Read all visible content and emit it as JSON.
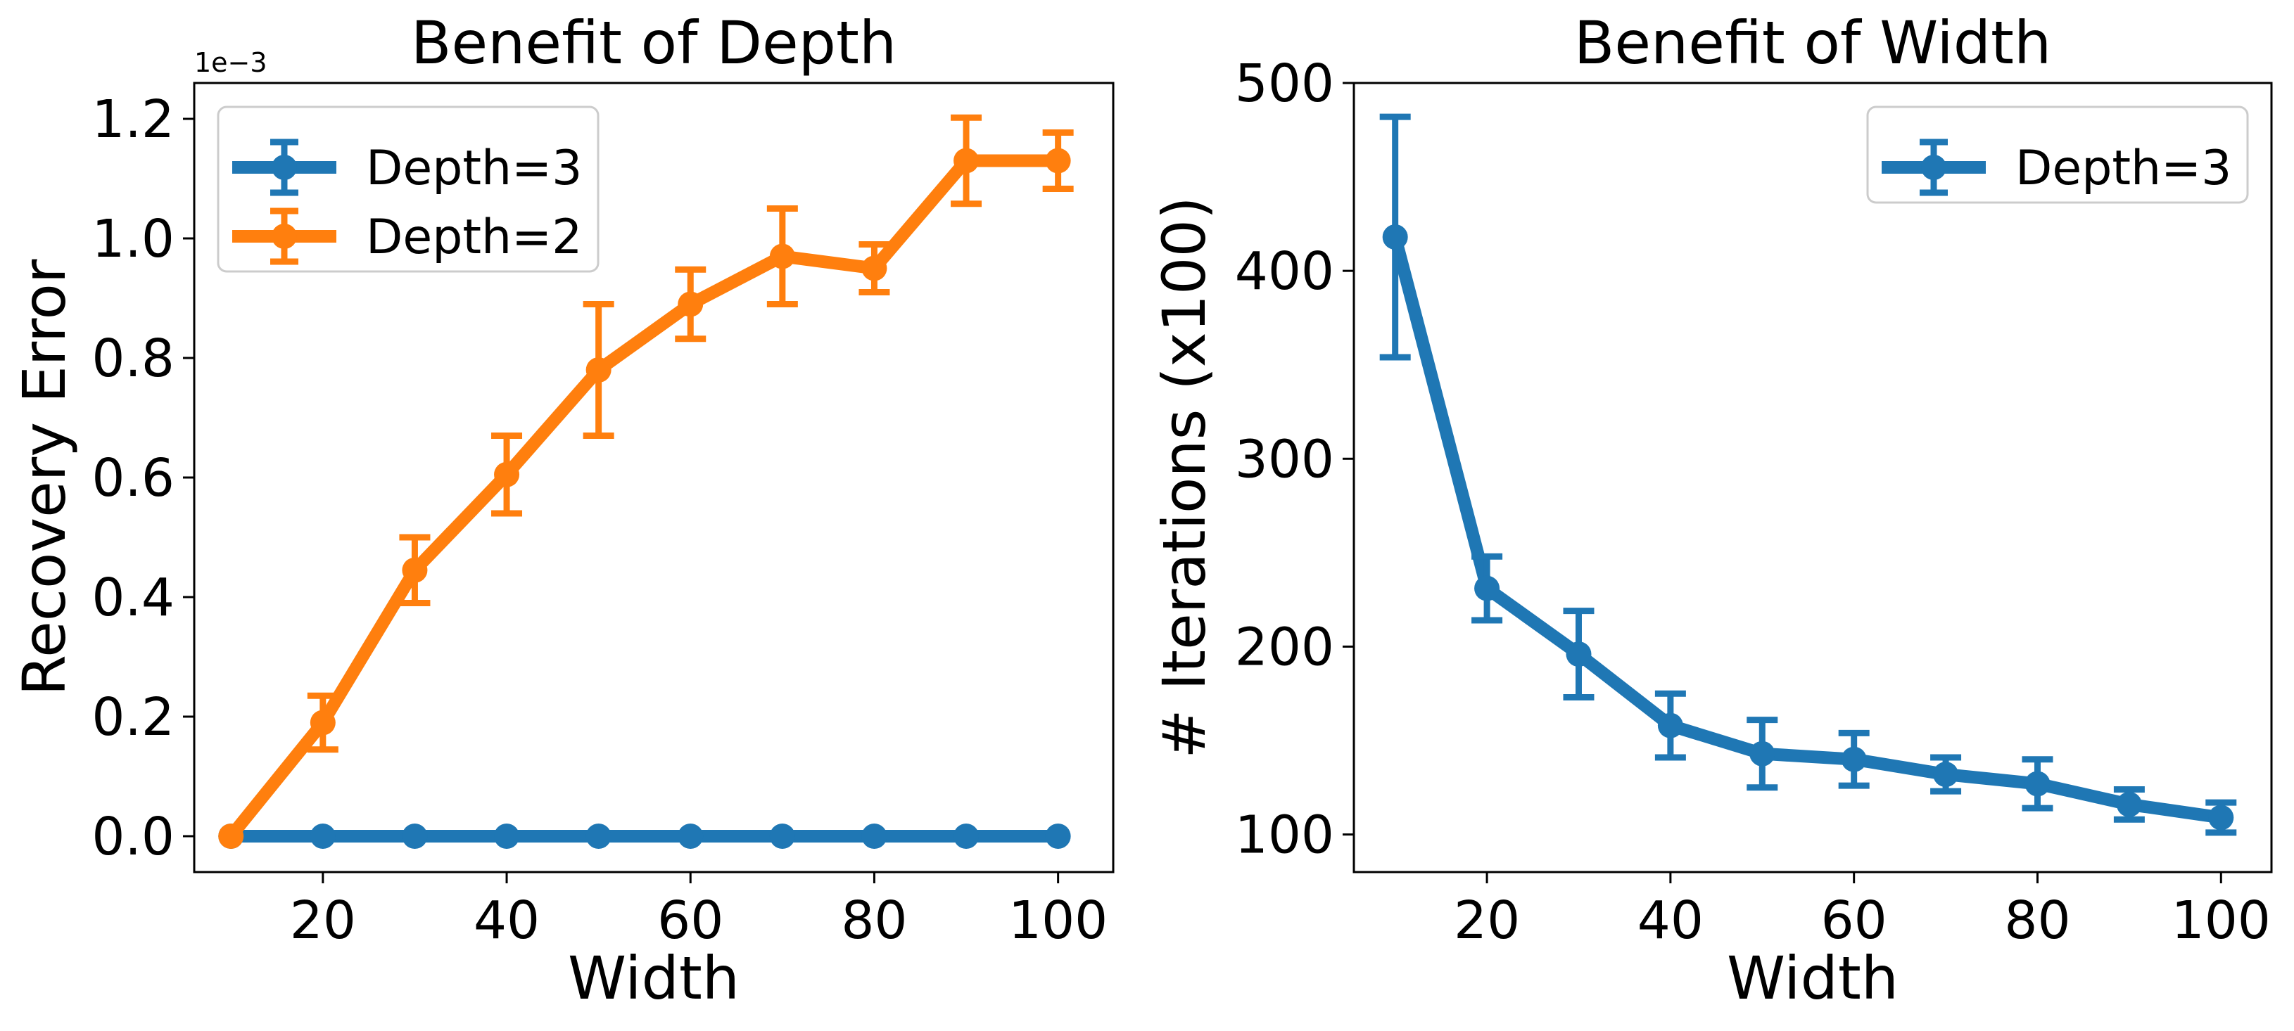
{
  "chart_data": [
    {
      "type": "line",
      "title": "Benefit of Depth",
      "xlabel": "Width",
      "ylabel": "Recovery Error",
      "y_scale_label": "1e−3",
      "xlim": [
        6,
        106
      ],
      "ylim": [
        -0.06,
        1.26
      ],
      "xticks": [
        20,
        40,
        60,
        80,
        100
      ],
      "xtick_labels": [
        "20",
        "40",
        "60",
        "80",
        "100"
      ],
      "yticks": [
        0.0,
        0.2,
        0.4,
        0.6,
        0.8,
        1.0,
        1.2
      ],
      "ytick_labels": [
        "0.0",
        "0.2",
        "0.4",
        "0.6",
        "0.8",
        "1.0",
        "1.2"
      ],
      "grid": false,
      "legend_position": "upper-left",
      "x": [
        10,
        20,
        30,
        40,
        50,
        60,
        70,
        80,
        90,
        100
      ],
      "series": [
        {
          "name": "Depth=3",
          "color": "#1f77b4",
          "values": [
            0,
            0,
            0,
            0,
            0,
            0,
            0,
            0,
            0,
            0
          ],
          "errors": [
            0,
            0,
            0,
            0,
            0,
            0,
            0,
            0,
            0,
            0
          ]
        },
        {
          "name": "Depth=2",
          "color": "#ff7f0e",
          "values": [
            0.0,
            0.19,
            0.445,
            0.605,
            0.78,
            0.89,
            0.97,
            0.95,
            1.13,
            1.13
          ],
          "errors": [
            0.0,
            0.045,
            0.055,
            0.065,
            0.11,
            0.058,
            0.08,
            0.04,
            0.072,
            0.047
          ]
        }
      ]
    },
    {
      "type": "line",
      "title": "Benefit of Width",
      "xlabel": "Width",
      "ylabel": "# Iterations (x100)",
      "xlim": [
        5.5,
        105.5
      ],
      "ylim": [
        80,
        500
      ],
      "xticks": [
        20,
        40,
        60,
        80,
        100
      ],
      "xtick_labels": [
        "20",
        "40",
        "60",
        "80",
        "100"
      ],
      "yticks": [
        100,
        200,
        300,
        400,
        500
      ],
      "ytick_labels": [
        "100",
        "200",
        "300",
        "400",
        "500"
      ],
      "grid": false,
      "legend_position": "upper-right",
      "x": [
        10,
        20,
        30,
        40,
        50,
        60,
        70,
        80,
        90,
        100
      ],
      "series": [
        {
          "name": "Depth=3",
          "color": "#1f77b4",
          "values": [
            418,
            231,
            196,
            158,
            143,
            140,
            132,
            127,
            116,
            109
          ],
          "errors": [
            64,
            17,
            23,
            17,
            18,
            14,
            9,
            13,
            8,
            8
          ]
        }
      ]
    }
  ]
}
